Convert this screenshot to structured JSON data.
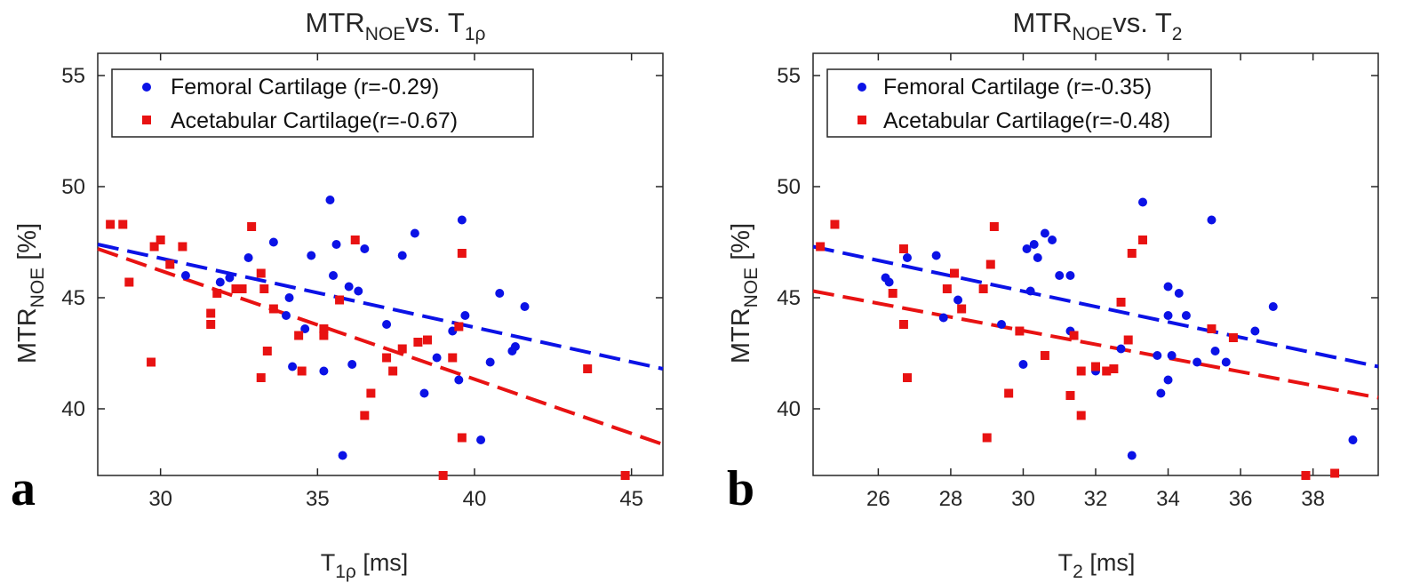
{
  "colors": {
    "femoral": "#0b12e6",
    "acetabular": "#e81212"
  },
  "chart_data": [
    {
      "type": "scatter",
      "panel_label": "a",
      "title": {
        "main": "MTR",
        "main_sub": "NOE",
        "mid": "vs. T",
        "mid_sub": "1ρ"
      },
      "xlabel": {
        "main": "T",
        "sub": "1ρ",
        "unit": " [ms]"
      },
      "ylabel": {
        "main": "MTR",
        "sub": "NOE",
        "unit": " [%]"
      },
      "xlim": [
        28,
        46
      ],
      "ylim": [
        37,
        56
      ],
      "xticks": [
        30,
        35,
        40,
        45
      ],
      "xtick_labels": [
        "30",
        "35",
        "40",
        "45"
      ],
      "yticks": [
        40,
        45,
        50,
        55
      ],
      "ytick_labels": [
        "40",
        "45",
        "50",
        "55"
      ],
      "legend": {
        "position": "top-left",
        "entries": [
          "Femoral Cartilage (r=-0.29)",
          "Acetabular Cartilage(r=-0.67)"
        ]
      },
      "series": [
        {
          "name": "Femoral Cartilage (r=-0.29)",
          "marker": "circle",
          "color_key": "femoral",
          "points": [
            [
              30.8,
              46
            ],
            [
              31.9,
              45.7
            ],
            [
              32.2,
              45.9
            ],
            [
              32.8,
              46.8
            ],
            [
              33.6,
              47.5
            ],
            [
              34,
              44.2
            ],
            [
              34.1,
              45
            ],
            [
              34.2,
              41.9
            ],
            [
              34.6,
              43.6
            ],
            [
              34.8,
              46.9
            ],
            [
              35.2,
              41.7
            ],
            [
              35.4,
              49.4
            ],
            [
              35.5,
              46
            ],
            [
              35.6,
              47.4
            ],
            [
              35.8,
              37.9
            ],
            [
              36,
              45.5
            ],
            [
              36.1,
              42
            ],
            [
              36.3,
              45.3
            ],
            [
              36.5,
              47.2
            ],
            [
              37.2,
              43.8
            ],
            [
              37.7,
              46.9
            ],
            [
              38.1,
              47.9
            ],
            [
              38.4,
              40.7
            ],
            [
              38.8,
              42.3
            ],
            [
              39.3,
              43.5
            ],
            [
              39.5,
              41.3
            ],
            [
              39.6,
              48.5
            ],
            [
              39.7,
              44.2
            ],
            [
              40.2,
              38.6
            ],
            [
              40.5,
              42.1
            ],
            [
              40.8,
              45.2
            ],
            [
              41.2,
              42.6
            ],
            [
              41.3,
              42.8
            ],
            [
              41.6,
              44.6
            ]
          ]
        },
        {
          "name": "Acetabular Cartilage(r=-0.67)",
          "marker": "square",
          "color_key": "acetabular",
          "points": [
            [
              28.4,
              48.3
            ],
            [
              28.8,
              48.3
            ],
            [
              29,
              45.7
            ],
            [
              29.7,
              42.1
            ],
            [
              29.8,
              47.3
            ],
            [
              30,
              47.6
            ],
            [
              30.3,
              46.5
            ],
            [
              30.7,
              47.3
            ],
            [
              31.6,
              44.3
            ],
            [
              31.6,
              43.8
            ],
            [
              31.8,
              45.2
            ],
            [
              32.4,
              45.4
            ],
            [
              32.6,
              45.4
            ],
            [
              32.9,
              48.2
            ],
            [
              33.2,
              46.1
            ],
            [
              33.3,
              45.4
            ],
            [
              33.2,
              41.4
            ],
            [
              33.4,
              42.6
            ],
            [
              33.6,
              44.5
            ],
            [
              34.4,
              43.3
            ],
            [
              34.5,
              41.7
            ],
            [
              35.2,
              43.3
            ],
            [
              35.2,
              43.6
            ],
            [
              35.7,
              44.9
            ],
            [
              36.2,
              47.6
            ],
            [
              36.5,
              39.7
            ],
            [
              36.7,
              40.7
            ],
            [
              37.2,
              42.3
            ],
            [
              37.4,
              41.7
            ],
            [
              37.7,
              42.7
            ],
            [
              38.2,
              43
            ],
            [
              38.5,
              43.1
            ],
            [
              39,
              37
            ],
            [
              39.3,
              42.3
            ],
            [
              39.5,
              43.7
            ],
            [
              39.6,
              38.7
            ],
            [
              39.6,
              47
            ],
            [
              43.6,
              41.8
            ],
            [
              44.8,
              37
            ]
          ]
        }
      ],
      "fits": [
        {
          "color_key": "femoral",
          "x": [
            28,
            46
          ],
          "y": [
            47.4,
            41.8
          ]
        },
        {
          "color_key": "acetabular",
          "x": [
            28,
            46
          ],
          "y": [
            47.2,
            38.4
          ]
        }
      ]
    },
    {
      "type": "scatter",
      "panel_label": "b",
      "title": {
        "main": "MTR",
        "main_sub": "NOE",
        "mid": "vs. T",
        "mid_sub": "2"
      },
      "xlabel": {
        "main": "T",
        "sub": "2",
        "unit": " [ms]"
      },
      "ylabel": {
        "main": "MTR",
        "sub": "NOE",
        "unit": " [%]"
      },
      "xlim": [
        24.2,
        39.8
      ],
      "ylim": [
        37,
        56
      ],
      "xticks": [
        26,
        28,
        30,
        32,
        34,
        36,
        38
      ],
      "xtick_labels": [
        "26",
        "28",
        "30",
        "32",
        "34",
        "36",
        "38"
      ],
      "yticks": [
        40,
        45,
        50,
        55
      ],
      "ytick_labels": [
        "40",
        "45",
        "50",
        "55"
      ],
      "legend": {
        "position": "top-left",
        "entries": [
          "Femoral Cartilage (r=-0.35)",
          "Acetabular Cartilage(r=-0.48)"
        ]
      },
      "series": [
        {
          "name": "Femoral Cartilage (r=-0.35)",
          "marker": "circle",
          "color_key": "femoral",
          "points": [
            [
              26.2,
              45.9
            ],
            [
              26.3,
              45.7
            ],
            [
              26.8,
              46.8
            ],
            [
              27.6,
              46.9
            ],
            [
              27.8,
              44.1
            ],
            [
              28.2,
              44.9
            ],
            [
              29.4,
              43.8
            ],
            [
              30,
              42
            ],
            [
              30.1,
              47.2
            ],
            [
              30.2,
              45.3
            ],
            [
              30.3,
              47.4
            ],
            [
              30.4,
              46.8
            ],
            [
              30.6,
              47.9
            ],
            [
              30.8,
              47.6
            ],
            [
              31,
              46
            ],
            [
              31.3,
              46
            ],
            [
              31.3,
              43.5
            ],
            [
              32,
              41.7
            ],
            [
              32.7,
              42.7
            ],
            [
              33,
              37.9
            ],
            [
              33.3,
              49.3
            ],
            [
              33.7,
              42.4
            ],
            [
              33.8,
              40.7
            ],
            [
              34,
              41.3
            ],
            [
              34,
              45.5
            ],
            [
              34,
              44.2
            ],
            [
              34.1,
              42.4
            ],
            [
              34.3,
              45.2
            ],
            [
              34.5,
              44.2
            ],
            [
              34.8,
              42.1
            ],
            [
              35.2,
              48.5
            ],
            [
              35.3,
              42.6
            ],
            [
              35.6,
              42.1
            ],
            [
              36.4,
              43.5
            ],
            [
              36.9,
              44.6
            ],
            [
              39.1,
              38.6
            ]
          ]
        },
        {
          "name": "Acetabular Cartilage(r=-0.48)",
          "marker": "square",
          "color_key": "acetabular",
          "points": [
            [
              24.4,
              47.3
            ],
            [
              24.8,
              48.3
            ],
            [
              26.4,
              45.2
            ],
            [
              26.7,
              43.8
            ],
            [
              26.7,
              47.2
            ],
            [
              26.8,
              41.4
            ],
            [
              27.9,
              45.4
            ],
            [
              28.1,
              46.1
            ],
            [
              28.3,
              44.5
            ],
            [
              28.9,
              45.4
            ],
            [
              29,
              38.7
            ],
            [
              29.1,
              46.5
            ],
            [
              29.2,
              48.2
            ],
            [
              29.6,
              40.7
            ],
            [
              29.9,
              43.5
            ],
            [
              30.6,
              42.4
            ],
            [
              31.3,
              40.6
            ],
            [
              31.4,
              43.3
            ],
            [
              31.6,
              39.7
            ],
            [
              31.6,
              41.7
            ],
            [
              32,
              41.9
            ],
            [
              32.3,
              41.7
            ],
            [
              32.5,
              41.8
            ],
            [
              32.7,
              44.8
            ],
            [
              32.9,
              43.1
            ],
            [
              33,
              47
            ],
            [
              33.3,
              47.6
            ],
            [
              37.8,
              37
            ],
            [
              38.6,
              37.1
            ],
            [
              35.2,
              43.6
            ],
            [
              35.8,
              43.2
            ]
          ]
        }
      ],
      "fits": [
        {
          "color_key": "femoral",
          "x": [
            24.2,
            39.8
          ],
          "y": [
            47.3,
            41.9
          ]
        },
        {
          "color_key": "acetabular",
          "x": [
            24.2,
            39.8
          ],
          "y": [
            45.3,
            40.5
          ]
        }
      ]
    }
  ]
}
